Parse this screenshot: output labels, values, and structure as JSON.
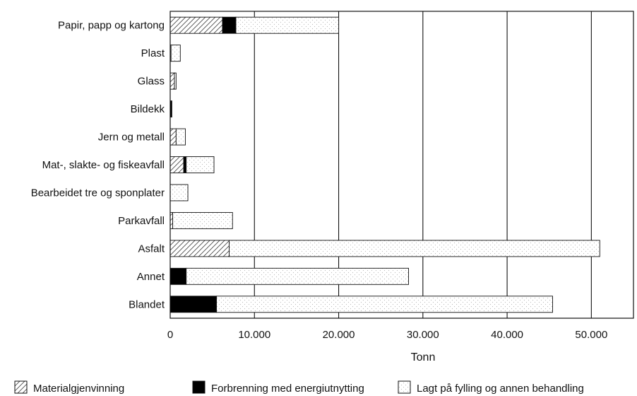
{
  "chart_data": {
    "type": "bar",
    "orientation": "horizontal",
    "stacked": true,
    "categories": [
      "Papir, papp og kartong",
      "Plast",
      "Glass",
      "Bildekk",
      "Jern og metall",
      "Mat-, slakte- og fiskeavfall",
      "Bearbeidet tre og sponplater",
      "Parkavfall",
      "Asfalt",
      "Annet",
      "Blandet"
    ],
    "series": [
      {
        "name": "Materialgjenvinning",
        "pattern": "hatch",
        "values": [
          6200,
          100,
          500,
          0,
          700,
          1600,
          0,
          300,
          7000,
          0,
          0
        ]
      },
      {
        "name": "Forbrenning med energiutnytting",
        "color": "#000000",
        "values": [
          1600,
          0,
          0,
          200,
          0,
          300,
          0,
          0,
          0,
          1900,
          5500
        ]
      },
      {
        "name": "Lagt på fylling og annen behandling",
        "pattern": "stipple",
        "values": [
          12200,
          1100,
          200,
          0,
          1100,
          3300,
          2100,
          7100,
          44000,
          26400,
          39900
        ]
      }
    ],
    "xlabel": "Tonn",
    "ylabel": "",
    "xlim": [
      0,
      55000
    ],
    "xticks": [
      0,
      10000,
      20000,
      30000,
      40000,
      50000
    ],
    "xtick_labels": [
      "0",
      "10.000",
      "20.000",
      "30.000",
      "40.000",
      "50.000"
    ],
    "grid": "vertical",
    "legend_position": "bottom"
  }
}
